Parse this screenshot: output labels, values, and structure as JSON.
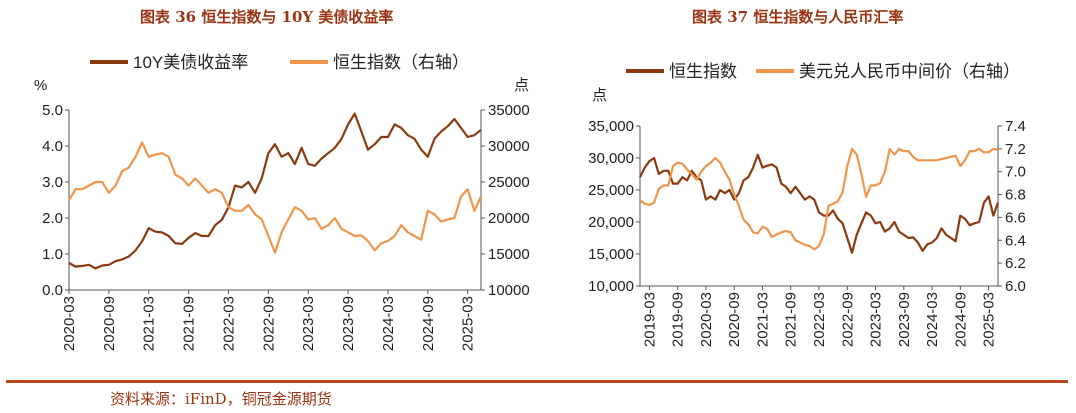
{
  "colors": {
    "dark": "#8b3a0f",
    "light": "#f0954a",
    "title": "#9a3412",
    "rule": "#b8471b"
  },
  "figures": [
    {
      "title": "图表 36 恒生指数与 10Y 美债收益率"
    },
    {
      "title": "图表 37 恒生指数与人民币汇率"
    }
  ],
  "source": "资料来源：iFinD，铜冠金源期货",
  "chart_data": [
    {
      "type": "line",
      "title": "图表 36 恒生指数与 10Y 美债收益率",
      "y_left_label": "%",
      "y_right_label": "点",
      "y_left_range": [
        0,
        5
      ],
      "y_right_range": [
        10000,
        35000
      ],
      "y_left_ticks": [
        "0.0",
        "1.0",
        "2.0",
        "3.0",
        "4.0",
        "5.0"
      ],
      "y_right_ticks": [
        "10000",
        "15000",
        "20000",
        "25000",
        "30000",
        "35000"
      ],
      "x_ticks": [
        "2020-03",
        "2020-09",
        "2021-03",
        "2021-09",
        "2022-03",
        "2022-09",
        "2023-03",
        "2023-09",
        "2024-03",
        "2024-09",
        "2025-03"
      ],
      "x_range": [
        "2020-03",
        "2025-05"
      ],
      "legend": [
        "10Y美债收益率",
        "恒生指数（右轴）"
      ],
      "series": [
        {
          "name": "10Y美债收益率",
          "axis": "left",
          "color": "#8b3a0f",
          "x": [
            "2020-03",
            "2020-04",
            "2020-05",
            "2020-06",
            "2020-07",
            "2020-08",
            "2020-09",
            "2020-10",
            "2020-11",
            "2020-12",
            "2021-01",
            "2021-02",
            "2021-03",
            "2021-04",
            "2021-05",
            "2021-06",
            "2021-07",
            "2021-08",
            "2021-09",
            "2021-10",
            "2021-11",
            "2021-12",
            "2022-01",
            "2022-02",
            "2022-03",
            "2022-04",
            "2022-05",
            "2022-06",
            "2022-07",
            "2022-08",
            "2022-09",
            "2022-10",
            "2022-11",
            "2022-12",
            "2023-01",
            "2023-02",
            "2023-03",
            "2023-04",
            "2023-05",
            "2023-06",
            "2023-07",
            "2023-08",
            "2023-09",
            "2023-10",
            "2023-11",
            "2023-12",
            "2024-01",
            "2024-02",
            "2024-03",
            "2024-04",
            "2024-05",
            "2024-06",
            "2024-07",
            "2024-08",
            "2024-09",
            "2024-10",
            "2024-11",
            "2024-12",
            "2025-01",
            "2025-02",
            "2025-03",
            "2025-04",
            "2025-05"
          ],
          "values": [
            0.75,
            0.65,
            0.67,
            0.7,
            0.6,
            0.68,
            0.7,
            0.8,
            0.85,
            0.93,
            1.1,
            1.35,
            1.72,
            1.62,
            1.6,
            1.5,
            1.3,
            1.28,
            1.45,
            1.58,
            1.5,
            1.5,
            1.8,
            1.95,
            2.3,
            2.9,
            2.85,
            3.0,
            2.7,
            3.1,
            3.8,
            4.05,
            3.7,
            3.8,
            3.5,
            3.95,
            3.5,
            3.45,
            3.65,
            3.8,
            3.95,
            4.2,
            4.6,
            4.9,
            4.4,
            3.9,
            4.05,
            4.25,
            4.25,
            4.6,
            4.5,
            4.3,
            4.2,
            3.9,
            3.7,
            4.2,
            4.4,
            4.55,
            4.75,
            4.5,
            4.25,
            4.3,
            4.45
          ]
        },
        {
          "name": "恒生指数（右轴）",
          "axis": "right",
          "color": "#f0954a",
          "x": [
            "2020-03",
            "2020-04",
            "2020-05",
            "2020-06",
            "2020-07",
            "2020-08",
            "2020-09",
            "2020-10",
            "2020-11",
            "2020-12",
            "2021-01",
            "2021-02",
            "2021-03",
            "2021-04",
            "2021-05",
            "2021-06",
            "2021-07",
            "2021-08",
            "2021-09",
            "2021-10",
            "2021-11",
            "2021-12",
            "2022-01",
            "2022-02",
            "2022-03",
            "2022-04",
            "2022-05",
            "2022-06",
            "2022-07",
            "2022-08",
            "2022-09",
            "2022-10",
            "2022-11",
            "2022-12",
            "2023-01",
            "2023-02",
            "2023-03",
            "2023-04",
            "2023-05",
            "2023-06",
            "2023-07",
            "2023-08",
            "2023-09",
            "2023-10",
            "2023-11",
            "2023-12",
            "2024-01",
            "2024-02",
            "2024-03",
            "2024-04",
            "2024-05",
            "2024-06",
            "2024-07",
            "2024-08",
            "2024-09",
            "2024-10",
            "2024-11",
            "2024-12",
            "2025-01",
            "2025-02",
            "2025-03",
            "2025-04",
            "2025-05"
          ],
          "values": [
            22500,
            24000,
            24000,
            24500,
            25000,
            25000,
            23500,
            24500,
            26500,
            27000,
            28500,
            30500,
            28500,
            28800,
            29000,
            28500,
            26000,
            25500,
            24500,
            25500,
            24500,
            23500,
            24000,
            23500,
            21500,
            21000,
            21000,
            21800,
            20500,
            19800,
            17500,
            15200,
            18000,
            19800,
            21500,
            21000,
            19800,
            20000,
            18500,
            19000,
            20000,
            18500,
            18000,
            17500,
            17600,
            16800,
            15500,
            16500,
            16800,
            17500,
            19000,
            18000,
            17500,
            17000,
            21000,
            20500,
            19500,
            19800,
            20000,
            23000,
            24000,
            21000,
            23000
          ]
        }
      ]
    },
    {
      "type": "line",
      "title": "图表 37 恒生指数与人民币汇率",
      "y_left_label": "点",
      "y_left_range": [
        10000,
        35000
      ],
      "y_right_range": [
        6.0,
        7.4
      ],
      "y_left_ticks": [
        "10,000",
        "15,000",
        "20,000",
        "25,000",
        "30,000",
        "35,000"
      ],
      "y_right_ticks": [
        "6.0",
        "6.2",
        "6.4",
        "6.6",
        "6.8",
        "7.0",
        "7.2",
        "7.4"
      ],
      "x_ticks": [
        "2019-03",
        "2019-09",
        "2020-03",
        "2020-09",
        "2021-03",
        "2021-09",
        "2022-03",
        "2022-09",
        "2023-03",
        "2023-09",
        "2024-03",
        "2024-09",
        "2025-03"
      ],
      "x_range": [
        "2019-01",
        "2025-05"
      ],
      "legend": [
        "恒生指数",
        "美元兑人民币中间价（右轴）"
      ],
      "series": [
        {
          "name": "恒生指数",
          "axis": "left",
          "color": "#8b3a0f",
          "x": [
            "2019-01",
            "2019-02",
            "2019-03",
            "2019-04",
            "2019-05",
            "2019-06",
            "2019-07",
            "2019-08",
            "2019-09",
            "2019-10",
            "2019-11",
            "2019-12",
            "2020-01",
            "2020-02",
            "2020-03",
            "2020-04",
            "2020-05",
            "2020-06",
            "2020-07",
            "2020-08",
            "2020-09",
            "2020-10",
            "2020-11",
            "2020-12",
            "2021-01",
            "2021-02",
            "2021-03",
            "2021-04",
            "2021-05",
            "2021-06",
            "2021-07",
            "2021-08",
            "2021-09",
            "2021-10",
            "2021-11",
            "2021-12",
            "2022-01",
            "2022-02",
            "2022-03",
            "2022-04",
            "2022-05",
            "2022-06",
            "2022-07",
            "2022-08",
            "2022-09",
            "2022-10",
            "2022-11",
            "2022-12",
            "2023-01",
            "2023-02",
            "2023-03",
            "2023-04",
            "2023-05",
            "2023-06",
            "2023-07",
            "2023-08",
            "2023-09",
            "2023-10",
            "2023-11",
            "2023-12",
            "2024-01",
            "2024-02",
            "2024-03",
            "2024-04",
            "2024-05",
            "2024-06",
            "2024-07",
            "2024-08",
            "2024-09",
            "2024-10",
            "2024-11",
            "2024-12",
            "2025-01",
            "2025-02",
            "2025-03",
            "2025-04",
            "2025-05"
          ],
          "values": [
            27000,
            28500,
            29500,
            30000,
            27500,
            28000,
            28000,
            26000,
            26000,
            27000,
            26500,
            28000,
            27000,
            26500,
            23500,
            24000,
            23500,
            25000,
            24500,
            25000,
            23500,
            24500,
            26500,
            27000,
            28500,
            30500,
            28500,
            28800,
            29000,
            28500,
            26000,
            25500,
            24500,
            25500,
            24500,
            23500,
            24000,
            23500,
            21500,
            21000,
            21000,
            21800,
            20500,
            19800,
            17500,
            15200,
            18000,
            19800,
            21500,
            21000,
            19800,
            20000,
            18500,
            19000,
            20000,
            18500,
            18000,
            17500,
            17600,
            16800,
            15500,
            16500,
            16800,
            17500,
            19000,
            18000,
            17500,
            17000,
            21000,
            20500,
            19500,
            19800,
            20000,
            23000,
            24000,
            21000,
            23000
          ]
        },
        {
          "name": "美元兑人民币中间价（右轴）",
          "axis": "right",
          "color": "#f0954a",
          "x": [
            "2019-01",
            "2019-02",
            "2019-03",
            "2019-04",
            "2019-05",
            "2019-06",
            "2019-07",
            "2019-08",
            "2019-09",
            "2019-10",
            "2019-11",
            "2019-12",
            "2020-01",
            "2020-02",
            "2020-03",
            "2020-04",
            "2020-05",
            "2020-06",
            "2020-07",
            "2020-08",
            "2020-09",
            "2020-10",
            "2020-11",
            "2020-12",
            "2021-01",
            "2021-02",
            "2021-03",
            "2021-04",
            "2021-05",
            "2021-06",
            "2021-07",
            "2021-08",
            "2021-09",
            "2021-10",
            "2021-11",
            "2021-12",
            "2022-01",
            "2022-02",
            "2022-03",
            "2022-04",
            "2022-05",
            "2022-06",
            "2022-07",
            "2022-08",
            "2022-09",
            "2022-10",
            "2022-11",
            "2022-12",
            "2023-01",
            "2023-02",
            "2023-03",
            "2023-04",
            "2023-05",
            "2023-06",
            "2023-07",
            "2023-08",
            "2023-09",
            "2023-10",
            "2023-11",
            "2023-12",
            "2024-01",
            "2024-02",
            "2024-03",
            "2024-04",
            "2024-05",
            "2024-06",
            "2024-07",
            "2024-08",
            "2024-09",
            "2024-10",
            "2024-11",
            "2024-12",
            "2025-01",
            "2025-02",
            "2025-03",
            "2025-04",
            "2025-05"
          ],
          "values": [
            6.75,
            6.72,
            6.71,
            6.73,
            6.85,
            6.88,
            6.88,
            7.05,
            7.08,
            7.07,
            7.02,
            6.98,
            6.93,
            7.0,
            7.05,
            7.08,
            7.12,
            7.08,
            7.0,
            6.93,
            6.8,
            6.7,
            6.58,
            6.54,
            6.47,
            6.46,
            6.52,
            6.5,
            6.43,
            6.45,
            6.47,
            6.48,
            6.47,
            6.4,
            6.38,
            6.36,
            6.35,
            6.32,
            6.35,
            6.45,
            6.7,
            6.72,
            6.74,
            6.82,
            7.05,
            7.2,
            7.15,
            6.98,
            6.78,
            6.88,
            6.88,
            6.9,
            7.0,
            7.2,
            7.15,
            7.2,
            7.18,
            7.18,
            7.13,
            7.1,
            7.1,
            7.1,
            7.1,
            7.1,
            7.11,
            7.12,
            7.13,
            7.14,
            7.05,
            7.1,
            7.18,
            7.18,
            7.2,
            7.17,
            7.17,
            7.2,
            7.19
          ]
        }
      ]
    }
  ]
}
